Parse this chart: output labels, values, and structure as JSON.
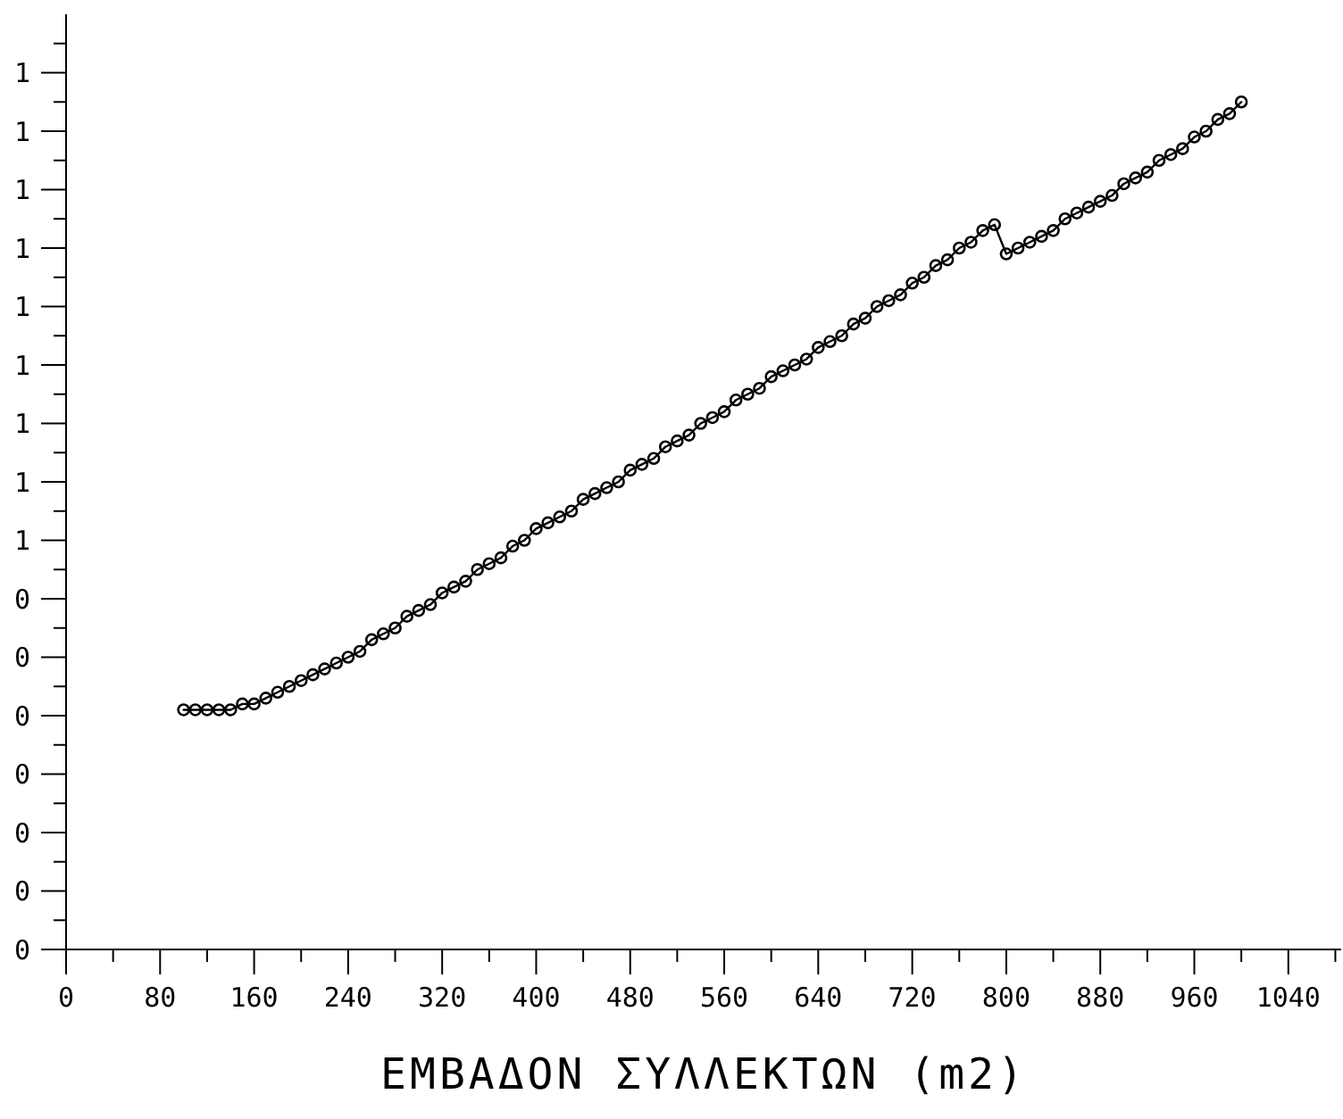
{
  "chart_data": {
    "type": "line",
    "xlabel": "ΕΜΒΑΔΟΝ ΣΥΛΛΕΚΤΩΝ (m2)",
    "marker": "circle",
    "line_style": "solid",
    "grid": false,
    "xlim": [
      0,
      1085
    ],
    "ylim": [
      0,
      1.28
    ],
    "xticks": [
      0,
      {
        "value": 40,
        "label": null
      },
      80,
      {
        "value": 120,
        "label": null
      },
      160,
      {
        "value": 200,
        "label": null
      },
      240,
      {
        "value": 280,
        "label": null
      },
      320,
      {
        "value": 360,
        "label": null
      },
      400,
      {
        "value": 440,
        "label": null
      },
      480,
      {
        "value": 520,
        "label": null
      },
      560,
      {
        "value": 600,
        "label": null
      },
      640,
      {
        "value": 680,
        "label": null
      },
      720,
      {
        "value": 760,
        "label": null
      },
      800,
      {
        "value": 840,
        "label": null
      },
      880,
      {
        "value": 920,
        "label": null
      },
      960,
      {
        "value": 1000,
        "label": null
      },
      1040,
      {
        "value": 1080,
        "label": null
      }
    ],
    "yticks": [
      0,
      {
        "value": 0.04,
        "label": null
      },
      {
        "value": 0.08,
        "label": "0"
      },
      {
        "value": 0.12,
        "label": null
      },
      {
        "value": 0.16,
        "label": "0"
      },
      {
        "value": 0.2,
        "label": null
      },
      {
        "value": 0.24,
        "label": "0"
      },
      {
        "value": 0.28,
        "label": null
      },
      {
        "value": 0.32,
        "label": "0"
      },
      {
        "value": 0.36,
        "label": null
      },
      {
        "value": 0.4,
        "label": "0"
      },
      {
        "value": 0.44,
        "label": null
      },
      {
        "value": 0.48,
        "label": "0"
      },
      {
        "value": 0.52,
        "label": null
      },
      {
        "value": 0.56,
        "label": "1"
      },
      {
        "value": 0.6,
        "label": null
      },
      {
        "value": 0.64,
        "label": "1"
      },
      {
        "value": 0.68,
        "label": null
      },
      {
        "value": 0.72,
        "label": "1"
      },
      {
        "value": 0.76,
        "label": null
      },
      {
        "value": 0.8,
        "label": "1"
      },
      {
        "value": 0.84,
        "label": null
      },
      {
        "value": 0.88,
        "label": "1"
      },
      {
        "value": 0.92,
        "label": null
      },
      {
        "value": 0.96,
        "label": "1"
      },
      {
        "value": 1.0,
        "label": null
      },
      {
        "value": 1.04,
        "label": "1"
      },
      {
        "value": 1.08,
        "label": null
      },
      {
        "value": 1.12,
        "label": "1"
      },
      {
        "value": 1.16,
        "label": null
      },
      {
        "value": 1.2,
        "label": "1"
      },
      {
        "value": 1.24,
        "label": null
      }
    ],
    "x": [
      100,
      110,
      120,
      130,
      140,
      150,
      160,
      170,
      180,
      190,
      200,
      210,
      220,
      230,
      240,
      250,
      260,
      270,
      280,
      290,
      300,
      310,
      320,
      330,
      340,
      350,
      360,
      370,
      380,
      390,
      400,
      410,
      420,
      430,
      440,
      450,
      460,
      470,
      480,
      490,
      500,
      510,
      520,
      530,
      540,
      550,
      560,
      570,
      580,
      590,
      600,
      610,
      620,
      630,
      640,
      650,
      660,
      670,
      680,
      690,
      700,
      710,
      720,
      730,
      740,
      750,
      760,
      770,
      780,
      790,
      800,
      810,
      820,
      830,
      840,
      850,
      860,
      870,
      880,
      890,
      900,
      910,
      920,
      930,
      940,
      950,
      960,
      970,
      980,
      990,
      1000
    ],
    "series": [
      {
        "color": "#000000",
        "values": [
          0.328,
          0.328,
          0.328,
          0.328,
          0.328,
          0.336,
          0.336,
          0.344,
          0.352,
          0.36,
          0.368,
          0.376,
          0.384,
          0.392,
          0.4,
          0.408,
          0.424,
          0.432,
          0.44,
          0.456,
          0.464,
          0.472,
          0.488,
          0.496,
          0.504,
          0.52,
          0.528,
          0.536,
          0.552,
          0.56,
          0.576,
          0.584,
          0.592,
          0.6,
          0.616,
          0.624,
          0.632,
          0.64,
          0.656,
          0.664,
          0.672,
          0.688,
          0.696,
          0.704,
          0.72,
          0.728,
          0.736,
          0.752,
          0.76,
          0.768,
          0.784,
          0.792,
          0.8,
          0.808,
          0.824,
          0.832,
          0.84,
          0.856,
          0.864,
          0.88,
          0.888,
          0.896,
          0.912,
          0.92,
          0.936,
          0.944,
          0.96,
          0.968,
          0.984,
          0.992,
          0.952,
          0.96,
          0.968,
          0.976,
          0.984,
          1.0,
          1.008,
          1.016,
          1.024,
          1.032,
          1.048,
          1.056,
          1.064,
          1.08,
          1.088,
          1.096,
          1.112,
          1.12,
          1.136,
          1.144,
          1.16
        ]
      }
    ]
  }
}
